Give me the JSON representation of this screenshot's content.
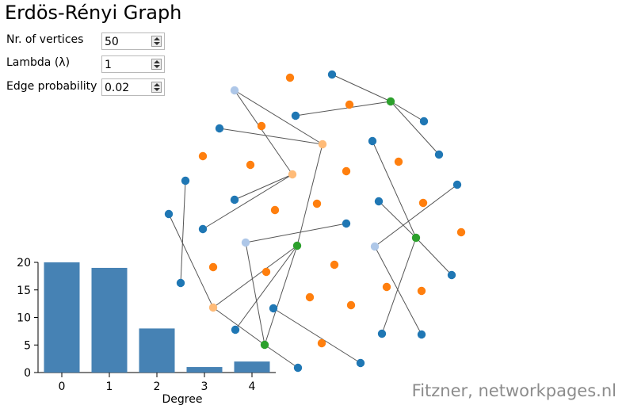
{
  "title": "Erdös-Rényi Graph",
  "controls": [
    {
      "label": "Nr. of vertices",
      "value": "50"
    },
    {
      "label": "Lambda (λ)",
      "value": "1"
    },
    {
      "label": "Edge probability",
      "value": "0.02"
    }
  ],
  "credit": "Fitzner, networkpages.nl",
  "colors": {
    "bar": "#4682b4",
    "degree0": "#ff7f0e",
    "degree1": "#1f77b4",
    "degree2": "#aec7e8",
    "degree3": "#ffbb78",
    "degree4": "#2ca02c",
    "edge": "#555555"
  },
  "chart_data": {
    "type": "bar",
    "categories": [
      "0",
      "1",
      "2",
      "3",
      "4"
    ],
    "values": [
      20,
      19,
      8,
      1,
      2
    ],
    "xlabel": "Degree",
    "ylabel": "",
    "ylim": [
      0,
      20
    ],
    "yticks": [
      0,
      5,
      10,
      15,
      20
    ]
  }
}
